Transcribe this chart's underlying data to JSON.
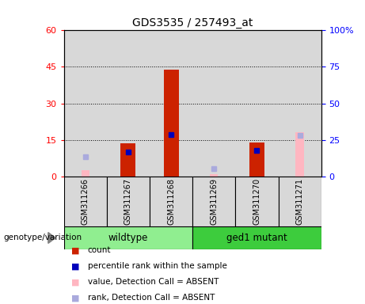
{
  "title": "GDS3535 / 257493_at",
  "samples": [
    "GSM311266",
    "GSM311267",
    "GSM311268",
    "GSM311269",
    "GSM311270",
    "GSM311271"
  ],
  "groups": [
    {
      "name": "wildtype",
      "color": "#90EE90"
    },
    {
      "name": "ged1 mutant",
      "color": "#3DCC3D"
    }
  ],
  "count_values": [
    null,
    13.5,
    44.0,
    null,
    14.0,
    null
  ],
  "percentile_values": [
    null,
    16.5,
    28.5,
    null,
    17.5,
    null
  ],
  "absent_value_values": [
    2.5,
    null,
    null,
    1.0,
    null,
    18.0
  ],
  "absent_rank_values": [
    13.5,
    null,
    null,
    5.5,
    null,
    28.0
  ],
  "ylim_left": [
    0,
    60
  ],
  "ylim_right": [
    0,
    100
  ],
  "yticks_left": [
    0,
    15,
    30,
    45,
    60
  ],
  "yticks_right": [
    0,
    25,
    50,
    75,
    100
  ],
  "ytick_labels_right": [
    "0",
    "25",
    "50",
    "75",
    "100%"
  ],
  "count_color": "#CC2200",
  "percentile_color": "#0000BB",
  "absent_value_color": "#FFB6C1",
  "absent_rank_color": "#AAAADD",
  "bg_color": "#D8D8D8",
  "genotype_label": "genotype/variation",
  "legend_items": [
    {
      "label": "count",
      "color": "#CC2200"
    },
    {
      "label": "percentile rank within the sample",
      "color": "#0000BB"
    },
    {
      "label": "value, Detection Call = ABSENT",
      "color": "#FFB6C1"
    },
    {
      "label": "rank, Detection Call = ABSENT",
      "color": "#AAAADD"
    }
  ]
}
